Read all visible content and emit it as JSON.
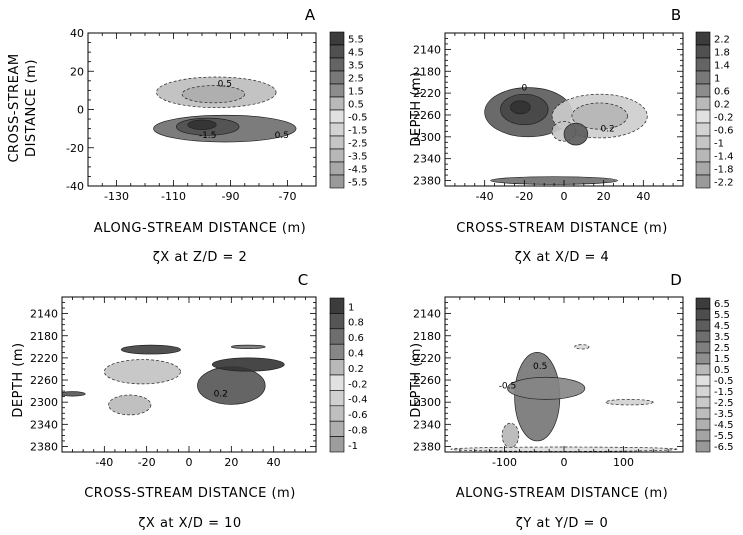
{
  "chart_data": [
    {
      "type": "contour",
      "panel_label": "A",
      "caption": "ζX at Z/D = 2",
      "xlabel": "ALONG-STREAM DISTANCE (m)",
      "ylabel": "CROSS-STREAM DISTANCE (m)",
      "xlim": [
        -140,
        -60
      ],
      "ylim": [
        -40,
        40
      ],
      "xticks": [
        -130,
        -110,
        -90,
        -70
      ],
      "yticks": [
        -40,
        -20,
        0,
        20,
        40
      ],
      "x_tick_labels": [
        "-130",
        "-110",
        "-90",
        "-70"
      ],
      "y_tick_labels": [
        "-40",
        "-20",
        "0",
        "20",
        "40"
      ],
      "colorbar_levels": [
        "5.5",
        "4.5",
        "3.5",
        "2.5",
        "1.5",
        "0.5",
        "-0.5",
        "-1.5",
        "-2.5",
        "-3.5",
        "-4.5",
        "-5.5"
      ],
      "contour_labels": [
        "0.5",
        "-1.5",
        "0.5"
      ]
    },
    {
      "type": "contour",
      "panel_label": "B",
      "caption": "ζX at X/D = 4",
      "xlabel": "CROSS-STREAM DISTANCE (m)",
      "ylabel": "DEPTH (m)",
      "xlim": [
        -60,
        60
      ],
      "ylim": [
        2390,
        2110
      ],
      "xticks": [
        -40,
        -20,
        0,
        20,
        40
      ],
      "yticks": [
        2140,
        2180,
        2220,
        2260,
        2300,
        2340,
        2380
      ],
      "x_tick_labels": [
        "-40",
        "-20",
        "0",
        "20",
        "40"
      ],
      "y_tick_labels": [
        "2140",
        "2180",
        "2220",
        "2260",
        "2300",
        "2340",
        "2380"
      ],
      "colorbar_levels": [
        "2.2",
        "1.8",
        "1.4",
        "1",
        "0.6",
        "0.2",
        "-0.2",
        "-0.6",
        "-1",
        "-1.4",
        "-1.8",
        "-2.2"
      ],
      "contour_labels": [
        "0",
        "0.2"
      ]
    },
    {
      "type": "contour",
      "panel_label": "C",
      "caption": "ζX at X/D = 10",
      "xlabel": "CROSS-STREAM DISTANCE (m)",
      "ylabel": "DEPTH (m)",
      "xlim": [
        -60,
        60
      ],
      "ylim": [
        2390,
        2110
      ],
      "xticks": [
        -40,
        -20,
        0,
        20,
        40
      ],
      "yticks": [
        2140,
        2180,
        2220,
        2260,
        2300,
        2340,
        2380
      ],
      "x_tick_labels": [
        "-40",
        "-20",
        "0",
        "20",
        "40"
      ],
      "y_tick_labels": [
        "2140",
        "2180",
        "2220",
        "2260",
        "2300",
        "2340",
        "2380"
      ],
      "colorbar_levels": [
        "1",
        "0.8",
        "0.6",
        "0.4",
        "0.2",
        "-0.2",
        "-0.4",
        "-0.6",
        "-0.8",
        "-1"
      ],
      "contour_labels": [
        "0.2"
      ]
    },
    {
      "type": "contour",
      "panel_label": "D",
      "caption": "ζY at Y/D = 0",
      "xlabel": "ALONG-STREAM DISTANCE (m)",
      "ylabel": "DEPTH (m)",
      "xlim": [
        -200,
        200
      ],
      "ylim": [
        2390,
        2110
      ],
      "xticks": [
        -100,
        0,
        100
      ],
      "yticks": [
        2140,
        2180,
        2220,
        2260,
        2300,
        2340,
        2380
      ],
      "x_tick_labels": [
        "-100",
        "0",
        "100"
      ],
      "y_tick_labels": [
        "2140",
        "2180",
        "2220",
        "2260",
        "2300",
        "2340",
        "2380"
      ],
      "colorbar_levels": [
        "6.5",
        "5.5",
        "4.5",
        "3.5",
        "2.5",
        "1.5",
        "0.5",
        "-0.5",
        "-1.5",
        "-2.5",
        "-3.5",
        "-4.5",
        "-5.5",
        "-6.5"
      ],
      "contour_labels": [
        "0.5",
        "-0.5"
      ]
    }
  ]
}
